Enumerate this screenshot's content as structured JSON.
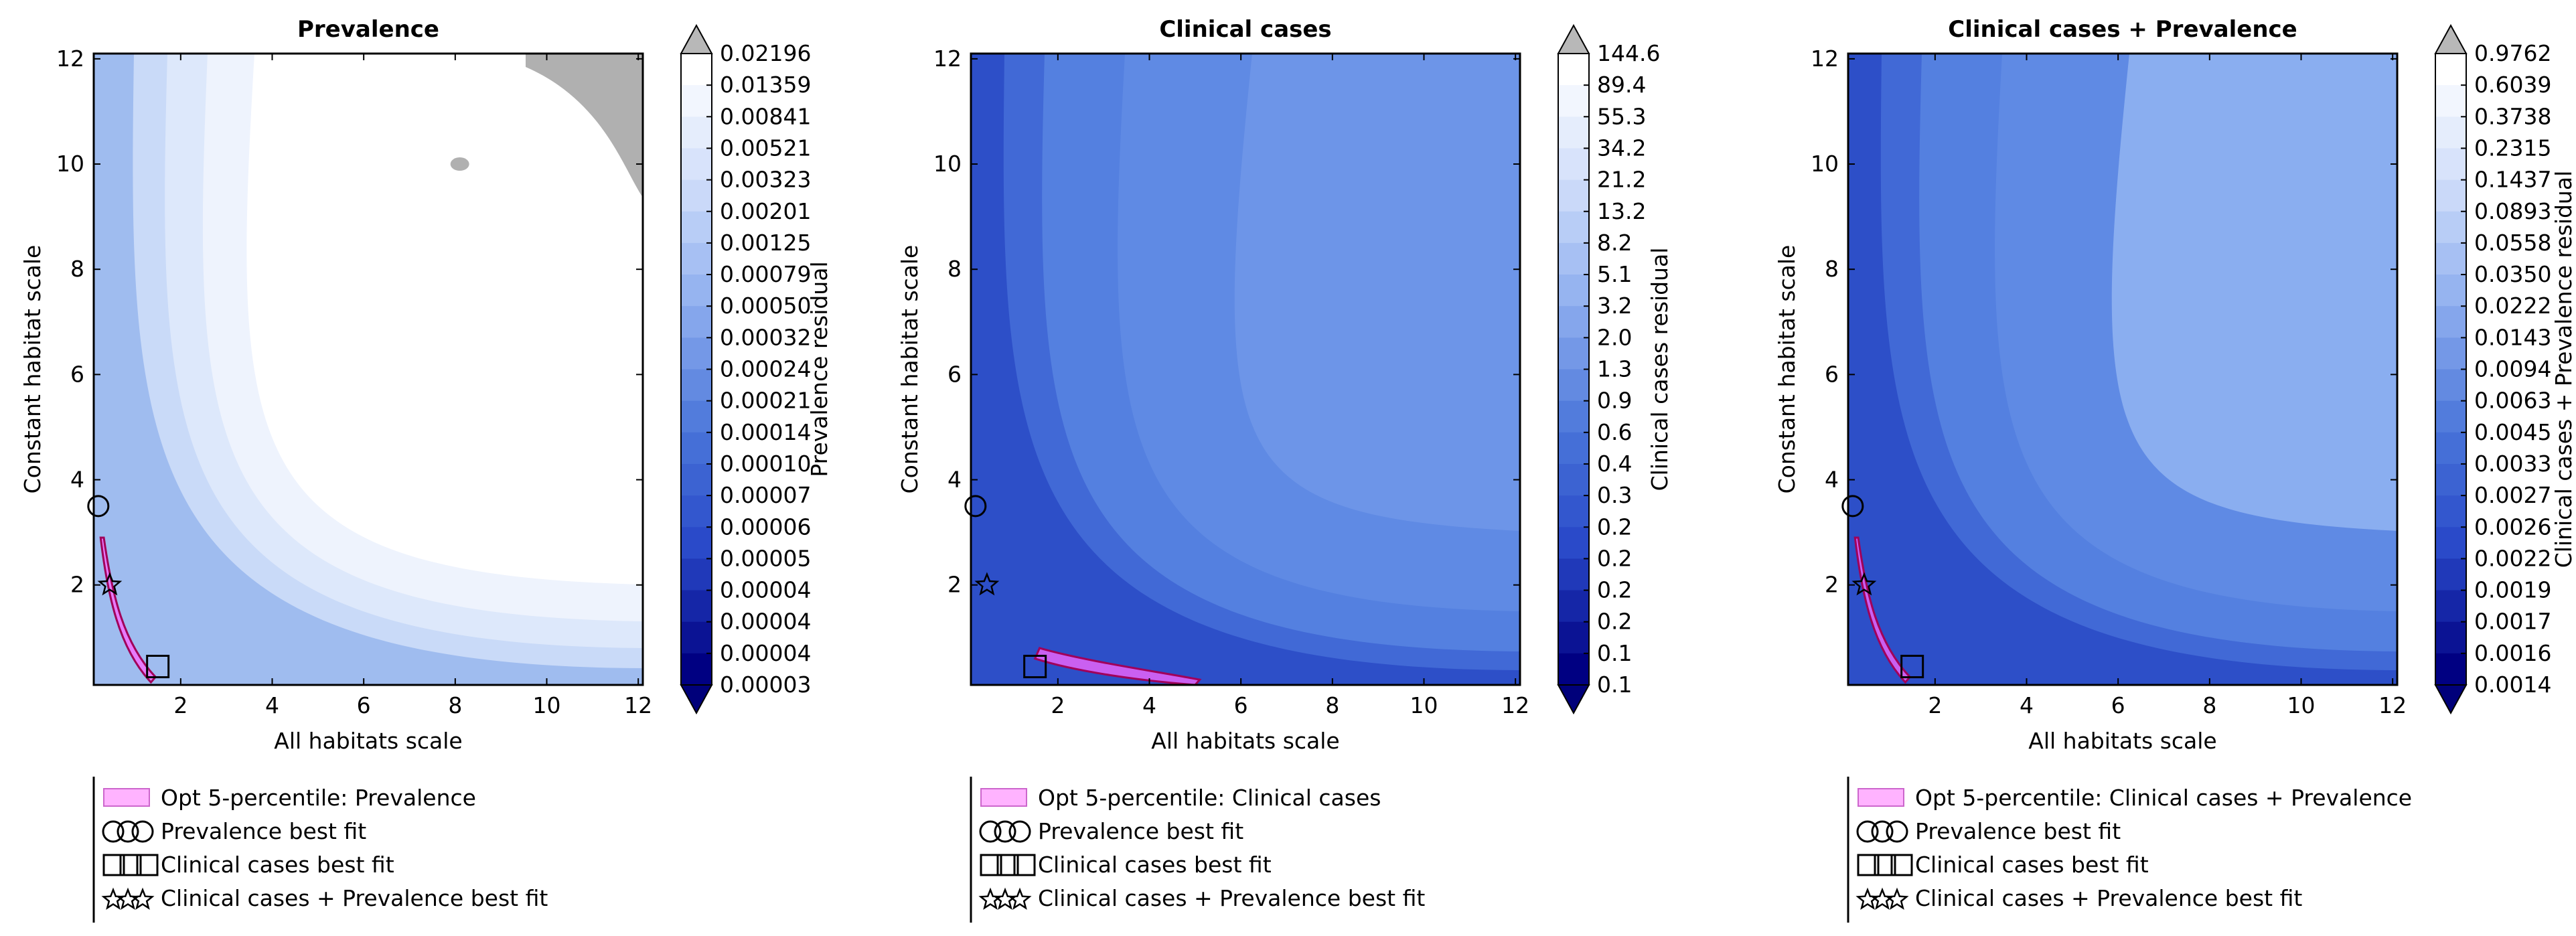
{
  "chart_data": [
    {
      "type": "heatmap",
      "title": "Prevalence",
      "xlabel": "All habitats scale",
      "ylabel": "Constant habitat scale",
      "colorbar_label": "Prevalence residual",
      "colorbar_ticks": [
        "0.02196",
        "0.01359",
        "0.00841",
        "0.00521",
        "0.00323",
        "0.00201",
        "0.00125",
        "0.00079",
        "0.00050",
        "0.00032",
        "0.00024",
        "0.00021",
        "0.00014",
        "0.00010",
        "0.00007",
        "0.00006",
        "0.00005",
        "0.00004",
        "0.00004",
        "0.00004",
        "0.00003"
      ],
      "xticks": [
        "2",
        "4",
        "6",
        "8",
        "10",
        "12"
      ],
      "yticks": [
        "2",
        "4",
        "6",
        "8",
        "10",
        "12"
      ],
      "xlim": [
        0.1,
        12.1
      ],
      "ylim": [
        0.1,
        12.1
      ],
      "grid": false,
      "colormap": "blues (dark navy = low residual, white = high)",
      "over_color": "#b0b0b0",
      "best_fit_markers": [
        {
          "marker": "circle",
          "x": 0.2,
          "y": 3.5
        },
        {
          "marker": "square",
          "x": 1.5,
          "y": 0.45
        },
        {
          "marker": "star",
          "x": 0.45,
          "y": 2.0
        }
      ],
      "opt_region_color": "#ff66ff",
      "legend": {
        "placement": "below",
        "entries": [
          "Opt 5-percentile: Prevalence",
          "Prevalence best fit",
          "Clinical cases best fit",
          "Clinical cases + Prevalence best fit"
        ]
      }
    },
    {
      "type": "heatmap",
      "title": "Clinical cases",
      "xlabel": "All habitats scale",
      "ylabel": "Constant habitat scale",
      "colorbar_label": "Clinical cases residual",
      "colorbar_ticks": [
        "144.6",
        "89.4",
        "55.3",
        "34.2",
        "21.2",
        "13.2",
        "8.2",
        "5.1",
        "3.2",
        "2.0",
        "1.3",
        "0.9",
        "0.6",
        "0.4",
        "0.3",
        "0.2",
        "0.2",
        "0.2",
        "0.2",
        "0.1",
        "0.1"
      ],
      "xticks": [
        "2",
        "4",
        "6",
        "8",
        "10",
        "12"
      ],
      "yticks": [
        "2",
        "4",
        "6",
        "8",
        "10",
        "12"
      ],
      "xlim": [
        0.1,
        12.1
      ],
      "ylim": [
        0.1,
        12.1
      ],
      "grid": false,
      "colormap": "blues (dark navy = low residual, white = high)",
      "over_color": "#b0b0b0",
      "best_fit_markers": [
        {
          "marker": "circle",
          "x": 0.2,
          "y": 3.5
        },
        {
          "marker": "square",
          "x": 1.5,
          "y": 0.45
        },
        {
          "marker": "star",
          "x": 0.45,
          "y": 2.0
        }
      ],
      "opt_region_color": "#ff66ff",
      "legend": {
        "placement": "below",
        "entries": [
          "Opt 5-percentile: Clinical cases",
          "Prevalence best fit",
          "Clinical cases best fit",
          "Clinical cases + Prevalence best fit"
        ]
      }
    },
    {
      "type": "heatmap",
      "title": "Clinical cases + Prevalence",
      "xlabel": "All habitats scale",
      "ylabel": "Constant habitat scale",
      "colorbar_label": "Clinical cases + Prevalence residual",
      "colorbar_ticks": [
        "0.9762",
        "0.6039",
        "0.3738",
        "0.2315",
        "0.1437",
        "0.0893",
        "0.0558",
        "0.0350",
        "0.0222",
        "0.0143",
        "0.0094",
        "0.0063",
        "0.0045",
        "0.0033",
        "0.0027",
        "0.0026",
        "0.0022",
        "0.0019",
        "0.0017",
        "0.0016",
        "0.0014"
      ],
      "xticks": [
        "2",
        "4",
        "6",
        "8",
        "10",
        "12"
      ],
      "yticks": [
        "2",
        "4",
        "6",
        "8",
        "10",
        "12"
      ],
      "xlim": [
        0.1,
        12.1
      ],
      "ylim": [
        0.1,
        12.1
      ],
      "grid": false,
      "colormap": "blues (dark navy = low residual, white = high)",
      "over_color": "#b0b0b0",
      "best_fit_markers": [
        {
          "marker": "circle",
          "x": 0.2,
          "y": 3.5
        },
        {
          "marker": "square",
          "x": 1.5,
          "y": 0.45
        },
        {
          "marker": "star",
          "x": 0.45,
          "y": 2.0
        }
      ],
      "opt_region_color": "#ff66ff",
      "legend": {
        "placement": "below",
        "entries": [
          "Opt 5-percentile: Clinical cases + Prevalence",
          "Prevalence best fit",
          "Clinical cases best fit",
          "Clinical cases + Prevalence best fit"
        ]
      }
    }
  ]
}
